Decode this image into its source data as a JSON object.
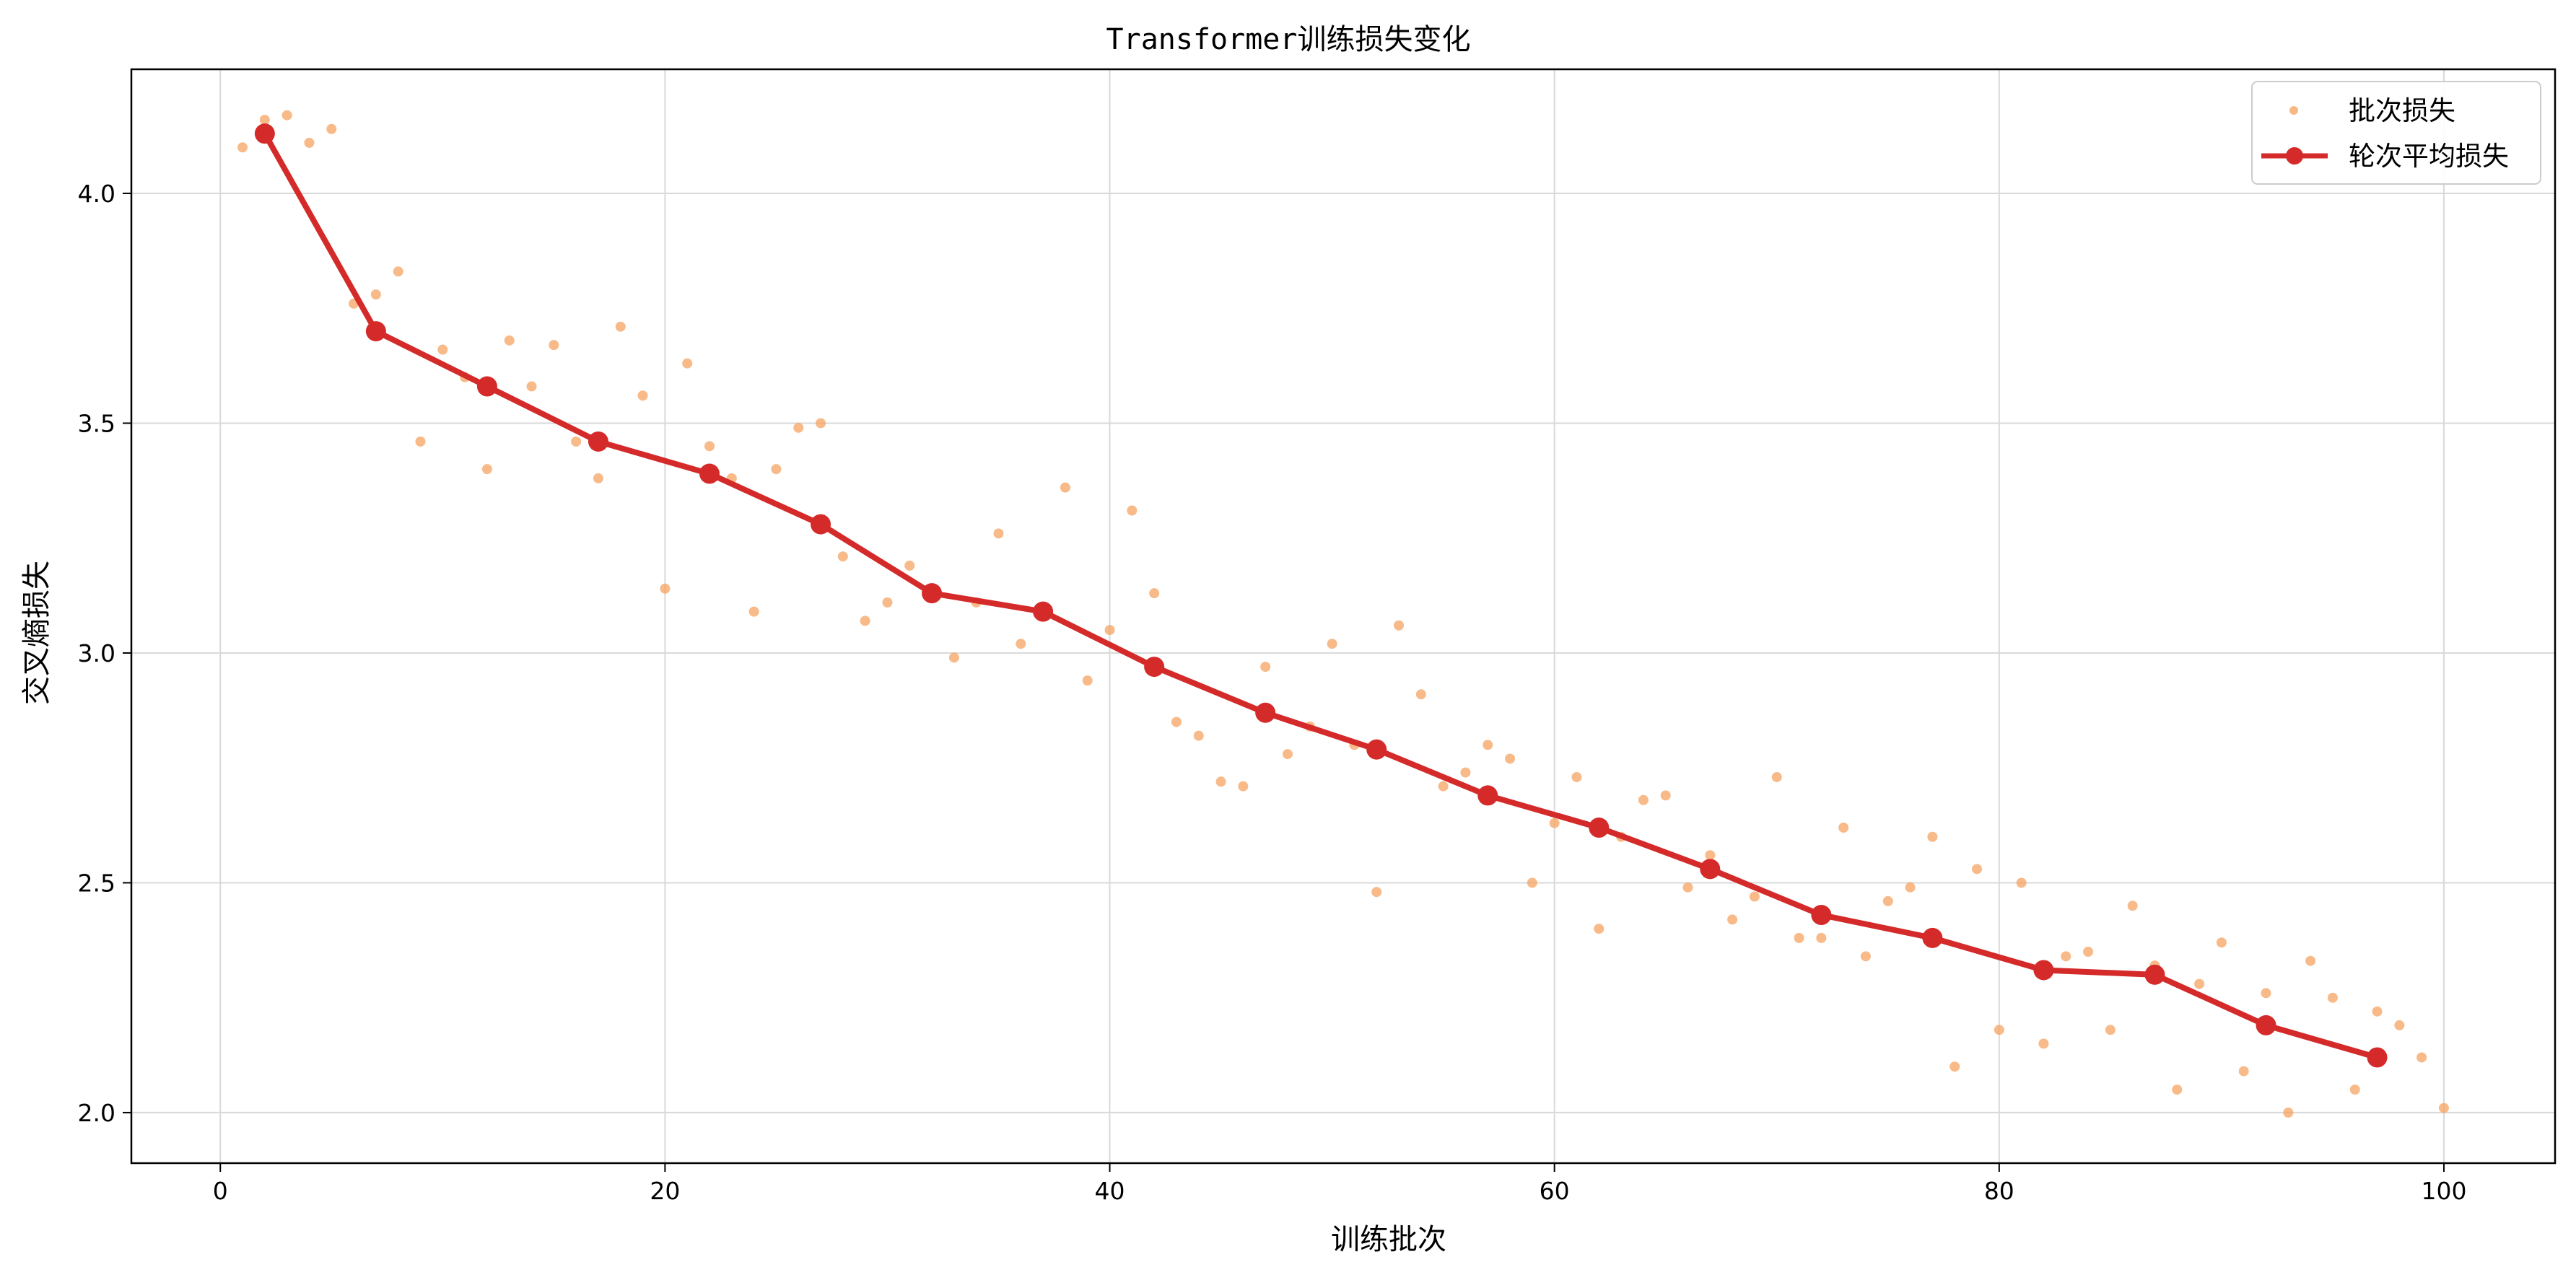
{
  "chart_data": {
    "type": "scatter",
    "title": "Transformer训练损失变化",
    "xlabel": "训练批次",
    "ylabel": "交叉熵损失",
    "xlim": [
      -4,
      105
    ],
    "ylim": [
      1.89,
      4.27
    ],
    "xticks": [
      0,
      20,
      40,
      60,
      80,
      100
    ],
    "yticks": [
      2.0,
      2.5,
      3.0,
      3.5,
      4.0
    ],
    "xtick_labels": [
      "0",
      "20",
      "40",
      "60",
      "80",
      "100"
    ],
    "ytick_labels": [
      "2.0",
      "2.5",
      "3.0",
      "3.5",
      "4.0"
    ],
    "grid": true,
    "legend_position": "top-right",
    "series": [
      {
        "name": "批次损失",
        "type": "scatter",
        "color": "#f5a05a",
        "x": [
          1,
          2,
          3,
          4,
          5,
          6,
          7,
          8,
          9,
          10,
          11,
          12,
          13,
          14,
          15,
          16,
          17,
          18,
          19,
          20,
          21,
          22,
          23,
          24,
          25,
          26,
          27,
          28,
          29,
          30,
          31,
          32,
          33,
          34,
          35,
          36,
          37,
          38,
          39,
          40,
          41,
          42,
          43,
          44,
          45,
          46,
          47,
          48,
          49,
          50,
          51,
          52,
          53,
          54,
          55,
          56,
          57,
          58,
          59,
          60,
          61,
          62,
          63,
          64,
          65,
          66,
          67,
          68,
          69,
          70,
          71,
          72,
          73,
          74,
          75,
          76,
          77,
          78,
          79,
          80,
          81,
          82,
          83,
          84,
          85,
          86,
          87,
          88,
          89,
          90,
          91,
          92,
          93,
          94,
          95,
          96,
          97,
          98,
          99,
          100
        ],
        "y": [
          4.1,
          4.16,
          4.17,
          4.11,
          4.14,
          3.76,
          3.78,
          3.83,
          3.46,
          3.66,
          3.6,
          3.4,
          3.68,
          3.58,
          3.67,
          3.46,
          3.38,
          3.71,
          3.56,
          3.14,
          3.63,
          3.45,
          3.38,
          3.09,
          3.4,
          3.49,
          3.5,
          3.21,
          3.07,
          3.11,
          3.19,
          3.13,
          2.99,
          3.11,
          3.26,
          3.02,
          3.09,
          3.36,
          2.94,
          3.05,
          3.31,
          3.13,
          2.85,
          2.82,
          2.72,
          2.71,
          2.97,
          2.78,
          2.84,
          3.02,
          2.8,
          2.48,
          3.06,
          2.91,
          2.71,
          2.74,
          2.8,
          2.77,
          2.5,
          2.63,
          2.73,
          2.4,
          2.6,
          2.68,
          2.69,
          2.49,
          2.56,
          2.42,
          2.47,
          2.73,
          2.38,
          2.38,
          2.62,
          2.34,
          2.46,
          2.49,
          2.6,
          2.1,
          2.53,
          2.18,
          2.5,
          2.15,
          2.34,
          2.35,
          2.18,
          2.45,
          2.32,
          2.05,
          2.28,
          2.37,
          2.09,
          2.26,
          2.0,
          2.33,
          2.25,
          2.05,
          2.22,
          2.19,
          2.12,
          2.01
        ]
      },
      {
        "name": "轮次平均损失",
        "type": "line",
        "color": "#d42a2a",
        "x": [
          2,
          7,
          12,
          17,
          22,
          27,
          32,
          37,
          42,
          47,
          52,
          57,
          62,
          67,
          72,
          77,
          82,
          87,
          92,
          97
        ],
        "y": [
          4.13,
          3.7,
          3.58,
          3.46,
          3.39,
          3.28,
          3.13,
          3.09,
          2.97,
          2.87,
          2.79,
          2.69,
          2.62,
          2.53,
          2.43,
          2.38,
          2.31,
          2.3,
          2.19,
          2.12
        ]
      }
    ]
  }
}
